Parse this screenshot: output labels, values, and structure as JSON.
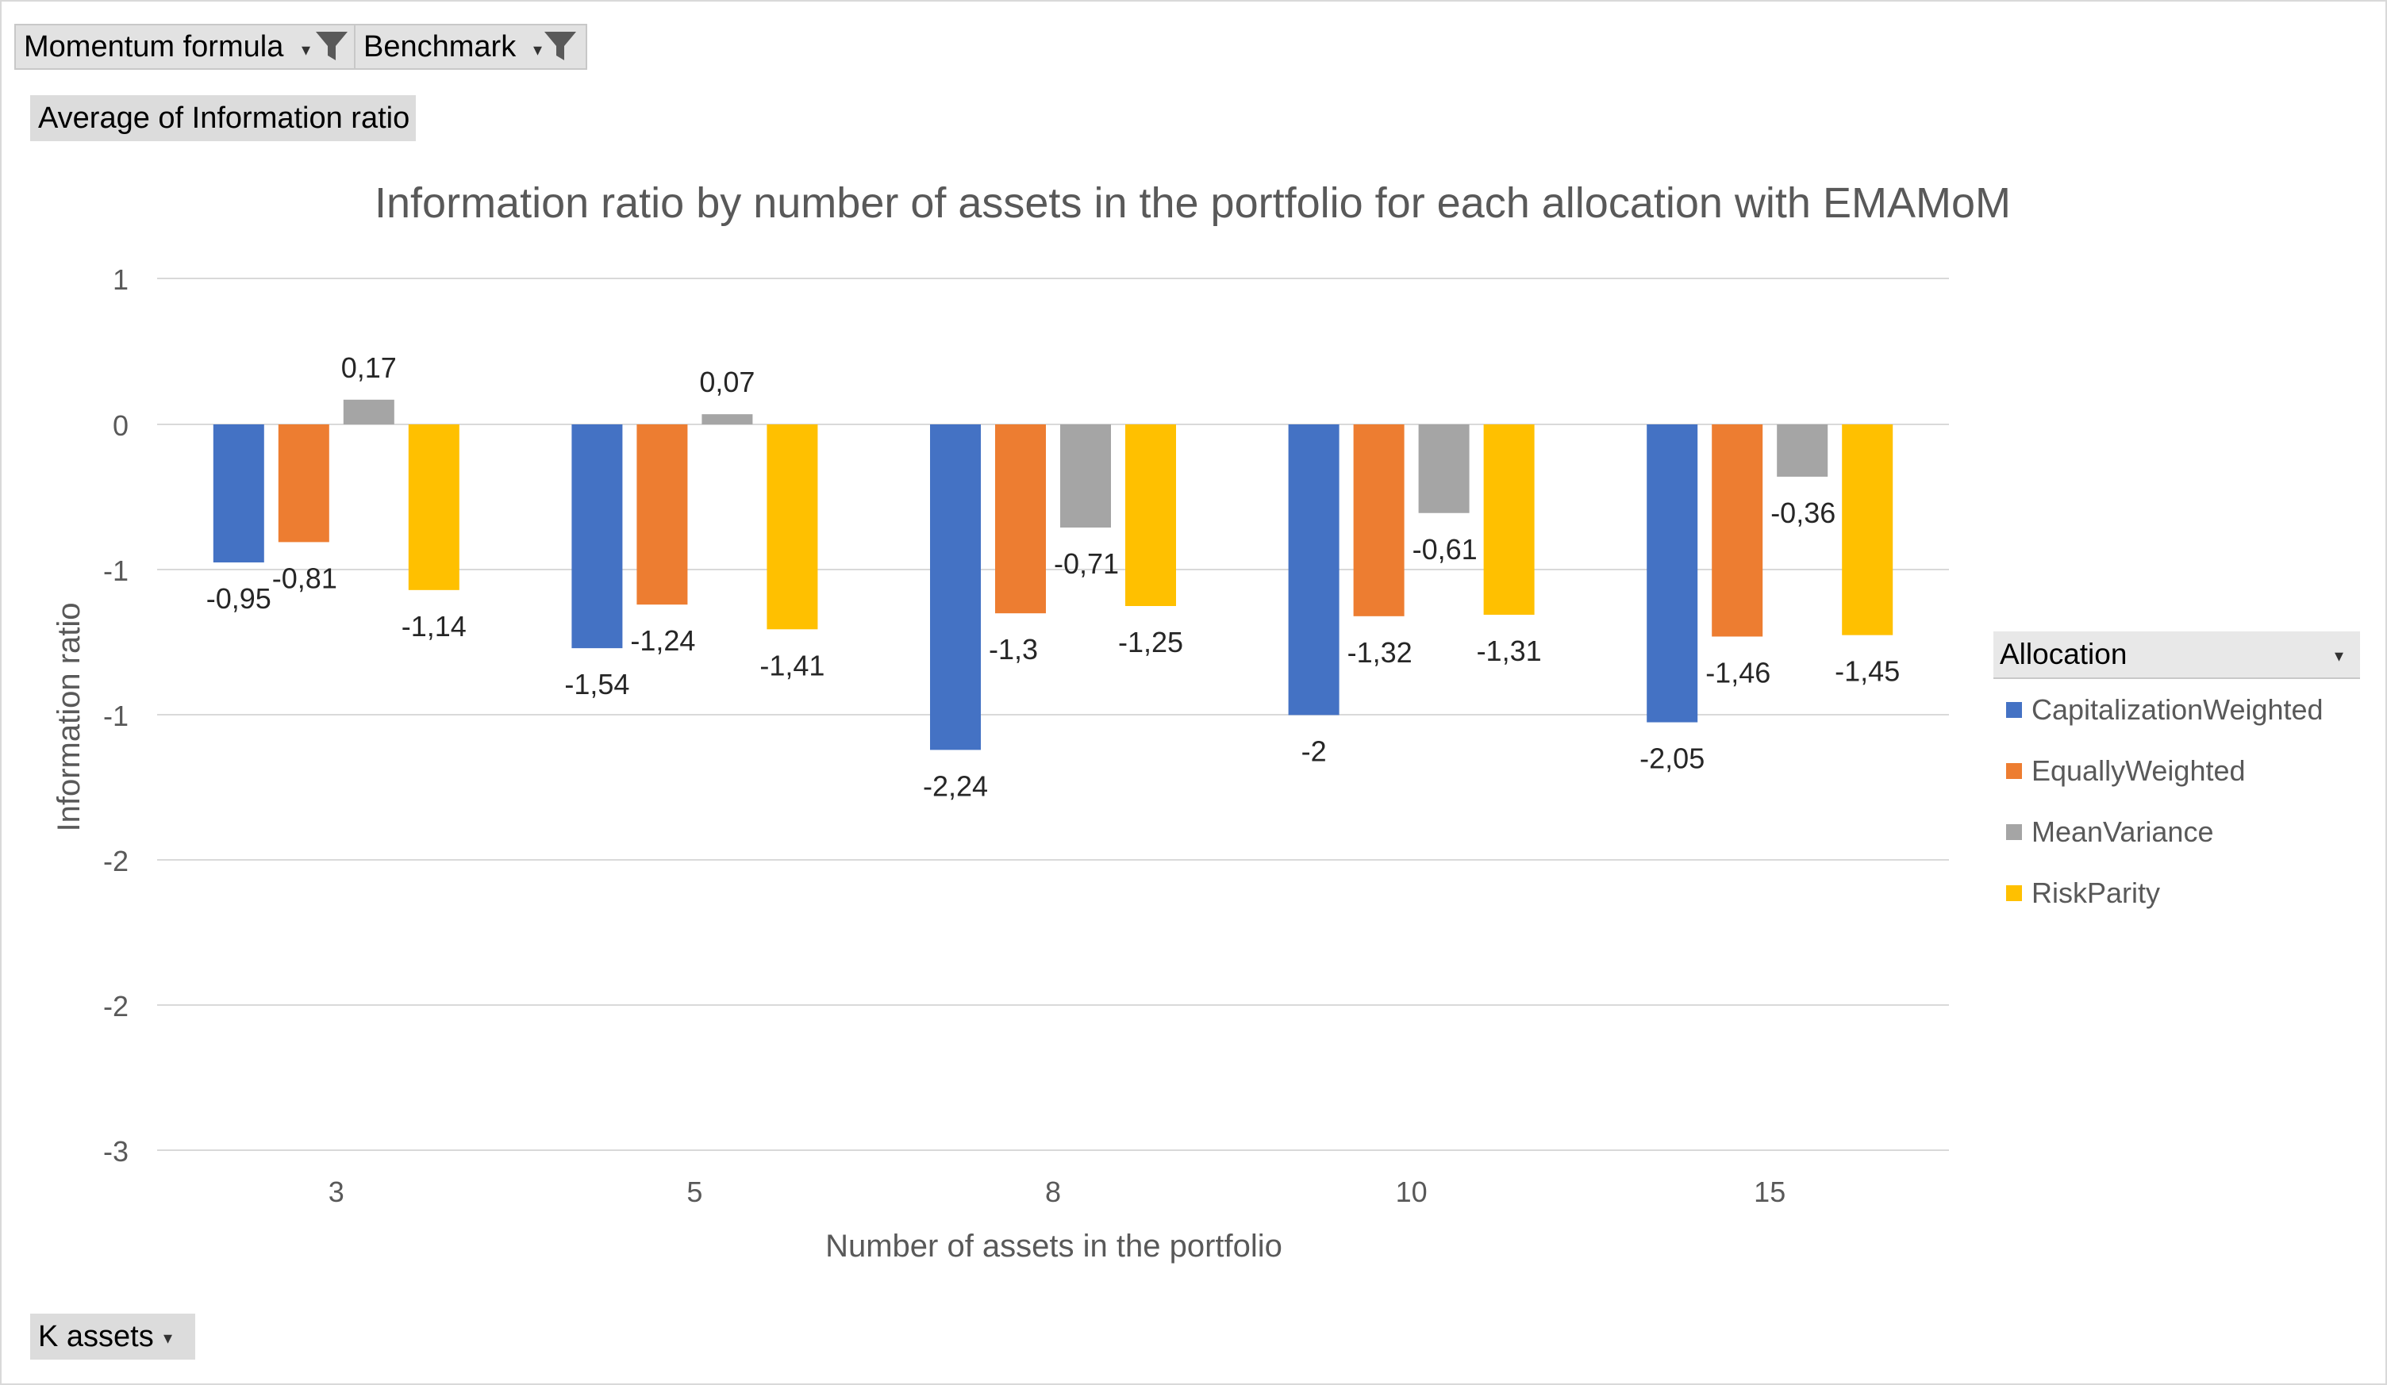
{
  "filters": {
    "momentum_label": "Momentum formula",
    "benchmark_label": "Benchmark",
    "values_label": "Average of Information ratio",
    "axis_field_label": "K assets",
    "legend_field_label": "Allocation"
  },
  "icons": {
    "filter": "funnel-icon",
    "dropdown": "chevron-down-icon"
  },
  "colors": {
    "CapitalizationWeighted": "#4472C4",
    "EquallyWeighted": "#ED7D31",
    "MeanVariance": "#A5A5A5",
    "RiskParity": "#FFC000"
  },
  "chart_data": {
    "type": "bar",
    "title": "Information ratio by number of assets in the portfolio for each allocation with EMAMoM",
    "xlabel": "Number of assets in the portfolio",
    "ylabel": "Information ratio",
    "categories": [
      "3",
      "5",
      "8",
      "10",
      "15"
    ],
    "y_ticks": [
      "1",
      "0",
      "-1",
      "-1",
      "-2",
      "-2",
      "-3"
    ],
    "grid": true,
    "legend_position": "right",
    "series": [
      {
        "name": "CapitalizationWeighted",
        "values": [
          -0.95,
          -1.54,
          -2.24,
          -2.0,
          -2.05
        ],
        "labels": [
          "-0,95",
          "-1,54",
          "-2,24",
          "-2",
          "-2,05"
        ]
      },
      {
        "name": "EquallyWeighted",
        "values": [
          -0.81,
          -1.24,
          -1.3,
          -1.32,
          -1.46
        ],
        "labels": [
          "-0,81",
          "-1,24",
          "-1,3",
          "-1,32",
          "-1,46"
        ]
      },
      {
        "name": "MeanVariance",
        "values": [
          0.17,
          0.07,
          -0.71,
          -0.61,
          -0.36
        ],
        "labels": [
          "0,17",
          "0,07",
          "-0,71",
          "-0,61",
          "-0,36"
        ]
      },
      {
        "name": "RiskParity",
        "values": [
          -1.14,
          -1.41,
          -1.25,
          -1.31,
          -1.45
        ],
        "labels": [
          "-1,14",
          "-1,41",
          "-1,25",
          "-1,31",
          "-1,45"
        ]
      }
    ]
  }
}
